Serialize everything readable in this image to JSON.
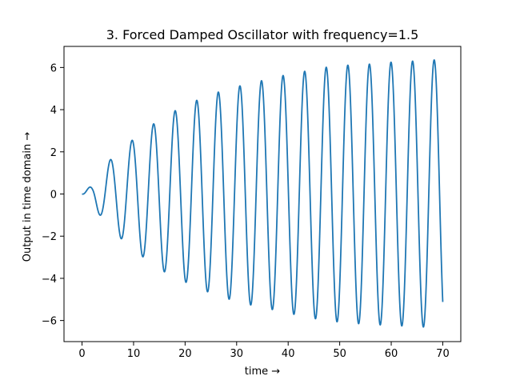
{
  "chart_data": {
    "type": "line",
    "title": "3. Forced Damped Oscillator with frequency=1.5",
    "xlabel": "time →",
    "ylabel": "Output in time domain →",
    "xlim": [
      -3.5,
      73.5
    ],
    "ylim": [
      -7.0,
      7.0
    ],
    "x_ticks": [
      0,
      10,
      20,
      30,
      40,
      50,
      60,
      70
    ],
    "x_tick_labels": [
      "0",
      "10",
      "20",
      "30",
      "40",
      "50",
      "60",
      "70"
    ],
    "y_ticks": [
      -6,
      -4,
      -2,
      0,
      2,
      4,
      6
    ],
    "y_tick_labels": [
      "−6",
      "−4",
      "−2",
      "0",
      "2",
      "4",
      "6"
    ],
    "grid": false,
    "series": [
      {
        "color": "#1f77b4",
        "model": {
          "description": "x(t) = a(t)·sin(1.5·t − φ), envelope a(t) rising toward ~6.4",
          "omega": 1.5,
          "amplitude_samples": [
            [
              0,
              0.0
            ],
            [
              2.0,
              0.45
            ],
            [
              3.0,
              0.85
            ],
            [
              5.0,
              1.5
            ],
            [
              7.0,
              2.0
            ],
            [
              9.3,
              2.45
            ],
            [
              11.0,
              2.85
            ],
            [
              13.5,
              3.25
            ],
            [
              15.3,
              3.6
            ],
            [
              17.6,
              3.9
            ],
            [
              19.5,
              4.1
            ],
            [
              21.8,
              4.4
            ],
            [
              24.0,
              4.6
            ],
            [
              26.0,
              4.8
            ],
            [
              28.0,
              4.95
            ],
            [
              30.2,
              5.1
            ],
            [
              32.5,
              5.25
            ],
            [
              34.4,
              5.35
            ],
            [
              36.5,
              5.45
            ],
            [
              38.6,
              5.6
            ],
            [
              41.0,
              5.7
            ],
            [
              42.8,
              5.8
            ],
            [
              45.0,
              5.9
            ],
            [
              47.0,
              6.0
            ],
            [
              49.0,
              6.05
            ],
            [
              51.2,
              6.1
            ],
            [
              53.4,
              6.15
            ],
            [
              55.4,
              6.15
            ],
            [
              57.6,
              6.2
            ],
            [
              59.7,
              6.25
            ],
            [
              61.8,
              6.25
            ],
            [
              63.9,
              6.3
            ],
            [
              66.0,
              6.3
            ],
            [
              68.0,
              6.35
            ],
            [
              70.0,
              6.4
            ]
          ],
          "t_start": 0,
          "t_end": 70,
          "end_value": -6.15
        }
      }
    ]
  }
}
